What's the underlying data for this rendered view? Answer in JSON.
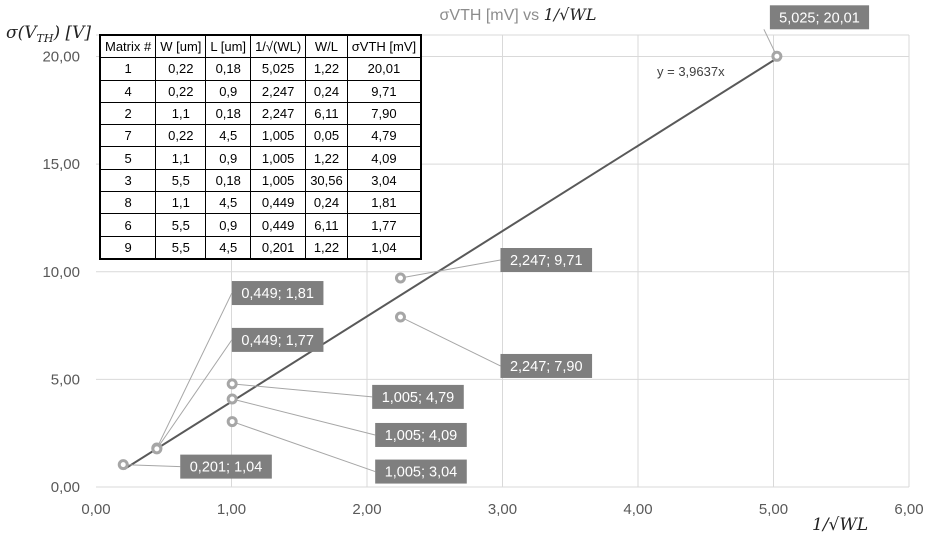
{
  "chart_data": {
    "type": "scatter",
    "title": "σVTH [mV] vs 1/√WL",
    "title_prefix": "σVTH [mV] vs ",
    "title_math": "1/√WL",
    "ylabel": "σ(V_TH) [V]",
    "ylabel_parts": {
      "sigma": "σ(V",
      "sub": "TH",
      "close": ") [V]"
    },
    "xlabel": "1/√WL",
    "xlim": [
      0,
      6
    ],
    "ylim": [
      0,
      21
    ],
    "x_ticks": [
      "0,00",
      "1,00",
      "2,00",
      "3,00",
      "4,00",
      "5,00",
      "6,00"
    ],
    "x_tick_values": [
      0,
      1,
      2,
      3,
      4,
      5,
      6
    ],
    "y_ticks": [
      "0,00",
      "5,00",
      "10,00",
      "15,00",
      "20,00"
    ],
    "y_tick_values": [
      0,
      5,
      10,
      15,
      20
    ],
    "grid": true,
    "legend": "none",
    "colors": {
      "marker": "#a6a6a6",
      "trendline": "#595959",
      "label_bg": "#7f7f7f",
      "grid": "#d9d9d9"
    },
    "points": [
      {
        "x": 5.025,
        "y": 20.01,
        "label": "5,025; 20,01"
      },
      {
        "x": 2.247,
        "y": 9.71,
        "label": "2,247; 9,71"
      },
      {
        "x": 2.247,
        "y": 7.9,
        "label": "2,247; 7,90"
      },
      {
        "x": 1.005,
        "y": 4.79,
        "label": "1,005; 4,79"
      },
      {
        "x": 1.005,
        "y": 4.09,
        "label": "1,005; 4,09"
      },
      {
        "x": 1.005,
        "y": 3.04,
        "label": "1,005; 3,04"
      },
      {
        "x": 0.449,
        "y": 1.81,
        "label": "0,449; 1,81"
      },
      {
        "x": 0.449,
        "y": 1.77,
        "label": "0,449; 1,77"
      },
      {
        "x": 0.201,
        "y": 1.04,
        "label": "0,201; 1,04"
      }
    ],
    "trendline": {
      "slope": 3.9637,
      "equation": "y = 3,9637x"
    },
    "table": {
      "headers": [
        "Matrix #",
        "W [um]",
        "L [um]",
        "1/√(WL)",
        "W/L",
        "σVTH [mV]"
      ],
      "rows": [
        [
          "1",
          "0,22",
          "0,18",
          "5,025",
          "1,22",
          "20,01"
        ],
        [
          "4",
          "0,22",
          "0,9",
          "2,247",
          "0,24",
          "9,71"
        ],
        [
          "2",
          "1,1",
          "0,18",
          "2,247",
          "6,11",
          "7,90"
        ],
        [
          "7",
          "0,22",
          "4,5",
          "1,005",
          "0,05",
          "4,79"
        ],
        [
          "5",
          "1,1",
          "0,9",
          "1,005",
          "1,22",
          "4,09"
        ],
        [
          "3",
          "5,5",
          "0,18",
          "1,005",
          "30,56",
          "3,04"
        ],
        [
          "8",
          "1,1",
          "4,5",
          "0,449",
          "0,24",
          "1,81"
        ],
        [
          "6",
          "5,5",
          "0,9",
          "0,449",
          "6,11",
          "1,77"
        ],
        [
          "9",
          "5,5",
          "4,5",
          "0,201",
          "1,22",
          "1,04"
        ]
      ]
    }
  }
}
